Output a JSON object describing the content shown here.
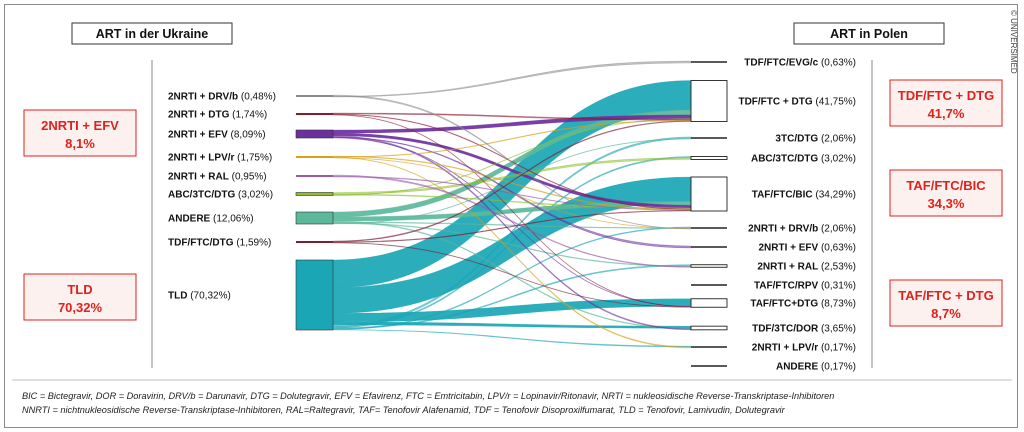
{
  "copyright": "© UNIVERSIMED",
  "left_header": "ART in der Ukraine",
  "right_header": "ART in Polen",
  "left_highlights": [
    {
      "name": "2NRTI + EFV",
      "value": "8,1%"
    },
    {
      "name": "TLD",
      "value": "70,32%"
    }
  ],
  "right_highlights": [
    {
      "name": "TDF/FTC + DTG",
      "value": "41,7%"
    },
    {
      "name": "TAF/FTC/BIC",
      "value": "34,3%"
    },
    {
      "name": "TAF/FTC + DTG",
      "value": "8,7%"
    }
  ],
  "chart_data": {
    "type": "sankey",
    "sources": [
      {
        "name": "2NRTI + DRV/b",
        "pct": "(0,48%)",
        "value": 0.48,
        "color": "#8a8a8a"
      },
      {
        "name": "2NRTI + DTG",
        "pct": "(1,74%)",
        "value": 1.74,
        "color": "#8b1a2e"
      },
      {
        "name": "2NRTI + EFV",
        "pct": "(8,09%)",
        "value": 8.09,
        "color": "#6b2fa0"
      },
      {
        "name": "2NRTI + LPV/r",
        "pct": "(1,75%)",
        "value": 1.75,
        "color": "#d4a017"
      },
      {
        "name": "2NRTI + RAL",
        "pct": "(0,95%)",
        "value": 0.95,
        "color": "#9c5aa8"
      },
      {
        "name": "ABC/3TC/DTG",
        "pct": "(3,02%)",
        "value": 3.02,
        "color": "#8dbf2e"
      },
      {
        "name": "ANDERE",
        "pct": "(12,06%)",
        "value": 12.06,
        "color": "#5bb89a"
      },
      {
        "name": "TDF/FTC/DTG",
        "pct": "(1,59%)",
        "value": 1.59,
        "color": "#7a1f35"
      },
      {
        "name": "TLD",
        "pct": "(70,32%)",
        "value": 70.32,
        "color": "#1aa6b5"
      }
    ],
    "targets": [
      {
        "name": "TDF/FTC/EVG/c",
        "pct": "(0,63%)",
        "value": 0.63
      },
      {
        "name": "TDF/FTC + DTG",
        "pct": "(41,75%)",
        "value": 41.75
      },
      {
        "name": "3TC/DTG",
        "pct": "(2,06%)",
        "value": 2.06
      },
      {
        "name": "ABC/3TC/DTG",
        "pct": "(3,02%)",
        "value": 3.02
      },
      {
        "name": "TAF/FTC/BIC",
        "pct": "(34,29%)",
        "value": 34.29
      },
      {
        "name": "2NRTI + DRV/b",
        "pct": "(2,06%)",
        "value": 2.06
      },
      {
        "name": "2NRTI + EFV",
        "pct": "(0,63%)",
        "value": 0.63
      },
      {
        "name": "2NRTI + RAL",
        "pct": "(2,53%)",
        "value": 2.53
      },
      {
        "name": "TAF/FTC/RPV",
        "pct": "(0,31%)",
        "value": 0.31
      },
      {
        "name": "TAF/FTC+DTG",
        "pct": "(8,73%)",
        "value": 8.73
      },
      {
        "name": "TDF/3TC/DOR",
        "pct": "(3,65%)",
        "value": 3.65
      },
      {
        "name": "2NRTI + LPV/r",
        "pct": "(0,17%)",
        "value": 0.17
      },
      {
        "name": "ANDERE",
        "pct": "(0,17%)",
        "value": 0.17
      }
    ]
  },
  "legend_lines": [
    "BIC = Bictegravir, DOR = Doravirin, DRV/b = Darunavir, DTG =  Dolutegravir, EFV = Efavirenz, FTC = Emtricitabin, LPV/r = Lopinavir/Ritonavir, NRTI = nukleosidische Reverse-Transkriptase-Inhibitoren",
    "NNRTI = nichtnukleosidische Reverse-Transkriptase-Inhibitoren, RAL=Raltegravir, TAF= Tenofovir Alafenamid, TDF = Tenofovir Disoproxilfumarat, TLD = Tenofovir, Lamivudin, Dolutegravir"
  ]
}
